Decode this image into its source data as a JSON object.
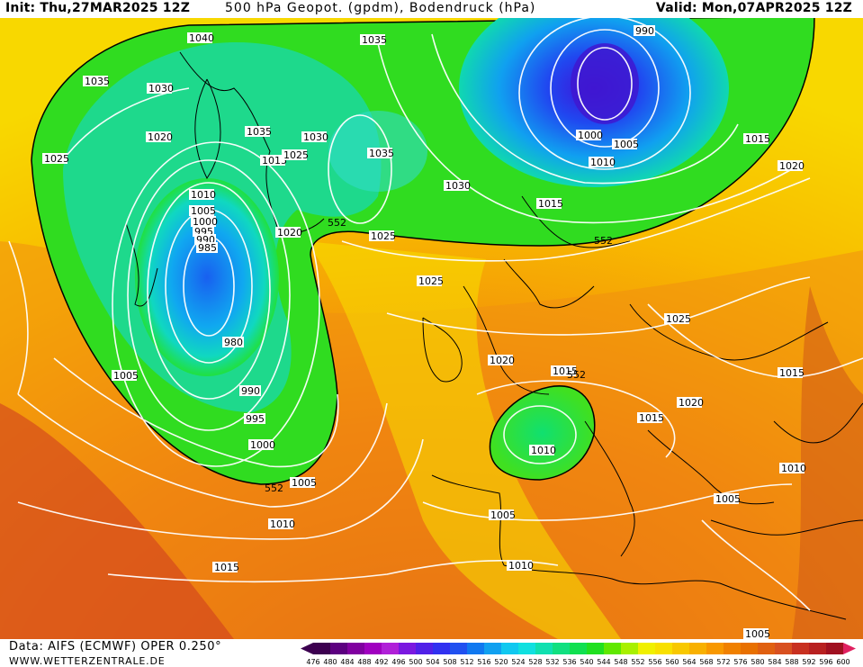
{
  "header": {
    "init": "Init: Thu,27MAR2025  12Z",
    "title": "500 hPa Geopot. (gpdm), Bodendruck (hPa)",
    "valid": "Valid: Mon,07APR2025  12Z"
  },
  "footer": {
    "data_source": "Data: AIFS (ECMWF) OPER 0.250°",
    "website": "WWW.WETTERZENTRALE.DE"
  },
  "map": {
    "isobar_labels": [
      "1040",
      "1035",
      "1035",
      "1030",
      "1030",
      "1025",
      "1020",
      "1035",
      "1015",
      "1025",
      "1035",
      "1030",
      "1010",
      "1005",
      "1000",
      "995",
      "990",
      "985",
      "1020",
      "1025",
      "1030",
      "1025",
      "980",
      "990",
      "995",
      "1000",
      "1005",
      "1005",
      "1010",
      "1015",
      "1020",
      "1000",
      "1005",
      "1010",
      "1015",
      "990",
      "1020",
      "1015",
      "1025",
      "1020",
      "1015",
      "1015",
      "1010",
      "1005",
      "1010",
      "1005",
      "1010",
      "1015",
      "1020",
      "1005",
      "1015",
      "1010",
      "1020"
    ],
    "geopotential_labels": [
      "552",
      "552",
      "552",
      "552"
    ],
    "colors": {
      "ocean_border": "#ffffff",
      "low_center": "#3f1fd8",
      "isobars": "#ffffff",
      "coastline": "#000000"
    }
  },
  "legend": {
    "values": [
      "476",
      "480",
      "484",
      "488",
      "492",
      "496",
      "500",
      "504",
      "508",
      "512",
      "516",
      "520",
      "524",
      "528",
      "532",
      "536",
      "540",
      "544",
      "548",
      "552",
      "556",
      "560",
      "564",
      "568",
      "572",
      "576",
      "580",
      "584",
      "588",
      "592",
      "596",
      "600"
    ],
    "colors": [
      "#3c0050",
      "#5c0080",
      "#8000a0",
      "#a000c0",
      "#b020d8",
      "#7a18e0",
      "#5020e8",
      "#3030f0",
      "#2050f0",
      "#1078f0",
      "#10a0f0",
      "#10c8f0",
      "#10e0e0",
      "#10e0b0",
      "#10e080",
      "#10e050",
      "#20e020",
      "#60e800",
      "#a8f000",
      "#f0f000",
      "#f8e000",
      "#f8c800",
      "#f8b000",
      "#f89800",
      "#f08000",
      "#e87000",
      "#e06010",
      "#d85020",
      "#c83020",
      "#b82020",
      "#a01020",
      "#e02060"
    ]
  }
}
